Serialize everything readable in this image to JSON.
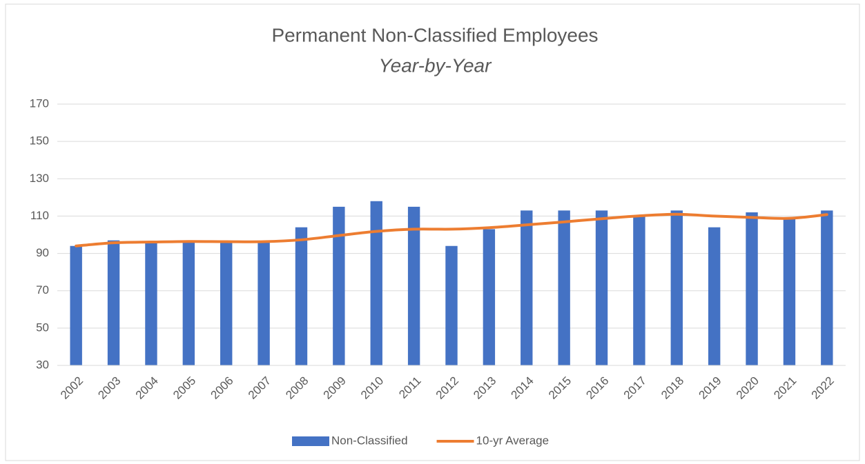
{
  "chart_data": {
    "type": "combo",
    "title": "Permanent Non-Classified Employees",
    "subtitle": "Year-by-Year",
    "categories": [
      "2002",
      "2003",
      "2004",
      "2005",
      "2006",
      "2007",
      "2008",
      "2009",
      "2010",
      "2011",
      "2012",
      "2013",
      "2014",
      "2015",
      "2016",
      "2017",
      "2018",
      "2019",
      "2020",
      "2021",
      "2022"
    ],
    "series": [
      {
        "name": "Non-Classified",
        "type": "bar",
        "color": "#4472c4",
        "values": [
          94,
          97,
          96,
          96,
          96,
          96,
          104,
          115,
          118,
          115,
          94,
          103,
          113,
          113,
          113,
          110,
          113,
          104,
          112,
          109,
          113
        ]
      },
      {
        "name": "10-yr Average",
        "type": "line",
        "color": "#ed7d31",
        "values": [
          94,
          95.7,
          96.1,
          96.4,
          96.3,
          96.3,
          97.3,
          99.6,
          101.8,
          103,
          103,
          103.8,
          105.3,
          106.9,
          108.6,
          110.1,
          111,
          110,
          109.3,
          108.8,
          110.8
        ]
      }
    ],
    "ylim": [
      30,
      170
    ],
    "yticks": [
      30,
      50,
      70,
      90,
      110,
      130,
      150,
      170
    ],
    "grid": true,
    "legend": "bottom"
  }
}
